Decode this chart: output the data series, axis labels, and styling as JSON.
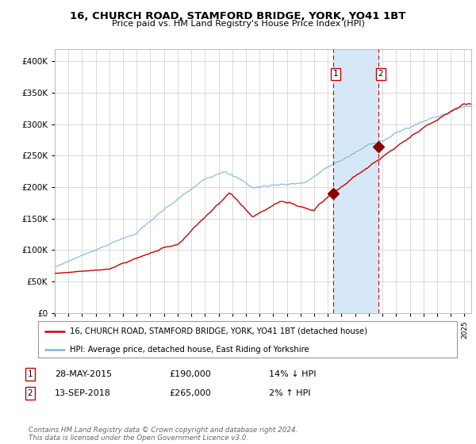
{
  "title": "16, CHURCH ROAD, STAMFORD BRIDGE, YORK, YO41 1BT",
  "subtitle": "Price paid vs. HM Land Registry's House Price Index (HPI)",
  "legend_line1": "16, CHURCH ROAD, STAMFORD BRIDGE, YORK, YO41 1BT (detached house)",
  "legend_line2": "HPI: Average price, detached house, East Riding of Yorkshire",
  "transaction1_date": "28-MAY-2015",
  "transaction1_price": 190000,
  "transaction1_hpi": "14% ↓ HPI",
  "transaction1_year": 2015.42,
  "transaction2_date": "13-SEP-2018",
  "transaction2_price": 265000,
  "transaction2_hpi": "2% ↑ HPI",
  "transaction2_year": 2018.71,
  "xmin": 1995,
  "xmax": 2025.5,
  "ymin": 0,
  "ymax": 420000,
  "yticks": [
    0,
    50000,
    100000,
    150000,
    200000,
    250000,
    300000,
    350000,
    400000
  ],
  "ytick_labels": [
    "£0",
    "£50K",
    "£100K",
    "£150K",
    "£200K",
    "£250K",
    "£300K",
    "£350K",
    "£400K"
  ],
  "hpi_color": "#7ab8e0",
  "price_color": "#cc0000",
  "marker_color": "#8b0000",
  "plot_bg": "#ffffff",
  "grid_color": "#cccccc",
  "span_color": "#d6e8f7",
  "footer": "Contains HM Land Registry data © Crown copyright and database right 2024.\nThis data is licensed under the Open Government Licence v3.0.",
  "copyright_color": "#666666"
}
